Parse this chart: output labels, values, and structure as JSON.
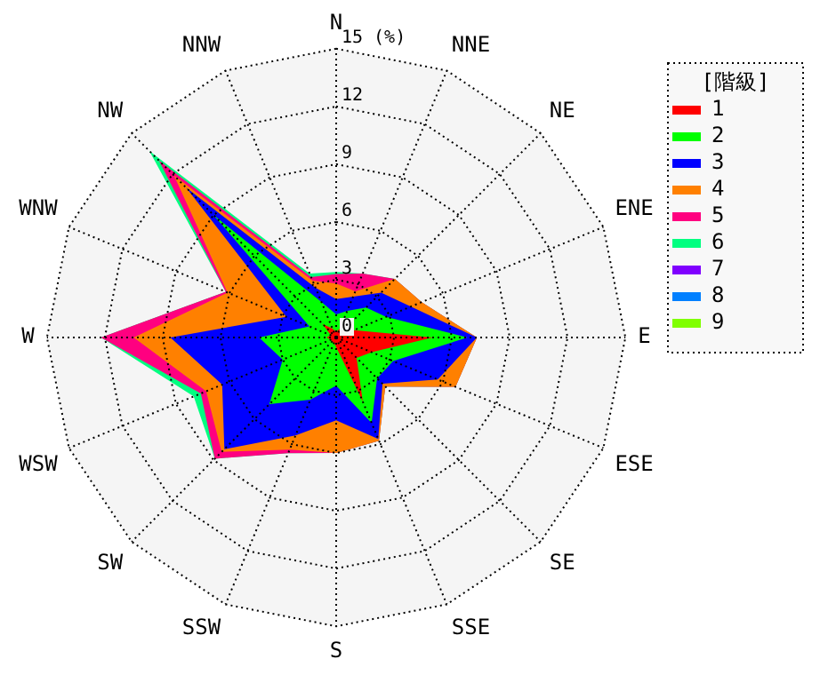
{
  "chart_data": {
    "type": "radar",
    "categories": [
      "N",
      "NNE",
      "NE",
      "ENE",
      "E",
      "ESE",
      "SE",
      "SSE",
      "S",
      "SSW",
      "SW",
      "WSW",
      "W",
      "WNW",
      "NW",
      "NNW"
    ],
    "ylabel": "(%)",
    "legend_title": "[階級]",
    "legend": "top right",
    "grid": true,
    "ylim": [
      0,
      15
    ],
    "yticks": [
      0,
      3,
      6,
      9,
      12,
      15
    ],
    "series": [
      {
        "name": "1",
        "color": "#ff0000",
        "values": [
          0.3,
          0.5,
          0.5,
          1.0,
          5.0,
          2.0,
          1.5,
          3.6,
          0.5,
          0.3,
          0.3,
          0.3,
          0.5,
          0.3,
          1.0,
          0.5
        ]
      },
      {
        "name": "2",
        "color": "#00ff00",
        "values": [
          1.2,
          1.5,
          2.2,
          2.8,
          6.8,
          3.2,
          3.0,
          4.8,
          2.5,
          3.5,
          4.9,
          3.0,
          4.0,
          1.5,
          9.0,
          2.0
        ]
      },
      {
        "name": "3",
        "color": "#0000ff",
        "values": [
          2.0,
          2.3,
          3.3,
          4.2,
          7.3,
          5.7,
          3.4,
          5.7,
          4.3,
          5.5,
          8.2,
          6.4,
          8.6,
          2.8,
          11.0,
          2.8
        ]
      },
      {
        "name": "4",
        "color": "#ff8000",
        "values": [
          2.8,
          2.6,
          4.3,
          4.8,
          7.3,
          6.7,
          3.6,
          5.8,
          6.0,
          6.3,
          8.4,
          7.3,
          10.5,
          6.1,
          11.9,
          3.2
        ]
      },
      {
        "name": "5",
        "color": "#ff0080",
        "values": [
          3.3,
          3.6,
          4.3,
          4.8,
          7.3,
          6.7,
          3.6,
          5.8,
          6.0,
          6.5,
          8.9,
          7.6,
          12.2,
          6.2,
          13.0,
          3.4
        ]
      },
      {
        "name": "6",
        "color": "#00ff80",
        "values": [
          3.4,
          3.6,
          4.3,
          4.8,
          7.3,
          6.7,
          3.6,
          5.8,
          6.0,
          6.5,
          8.9,
          8.0,
          12.2,
          6.2,
          13.7,
          3.6
        ]
      },
      {
        "name": "7",
        "color": "#8000ff",
        "values": [
          null,
          null,
          null,
          null,
          null,
          null,
          null,
          null,
          null,
          null,
          null,
          null,
          null,
          null,
          null,
          null
        ]
      },
      {
        "name": "8",
        "color": "#0080ff",
        "values": [
          null,
          null,
          null,
          null,
          null,
          null,
          null,
          null,
          null,
          null,
          null,
          null,
          null,
          null,
          null,
          null
        ]
      },
      {
        "name": "9",
        "color": "#80ff00",
        "values": [
          null,
          null,
          null,
          null,
          null,
          null,
          null,
          null,
          null,
          null,
          null,
          null,
          null,
          null,
          null,
          null
        ]
      }
    ]
  }
}
